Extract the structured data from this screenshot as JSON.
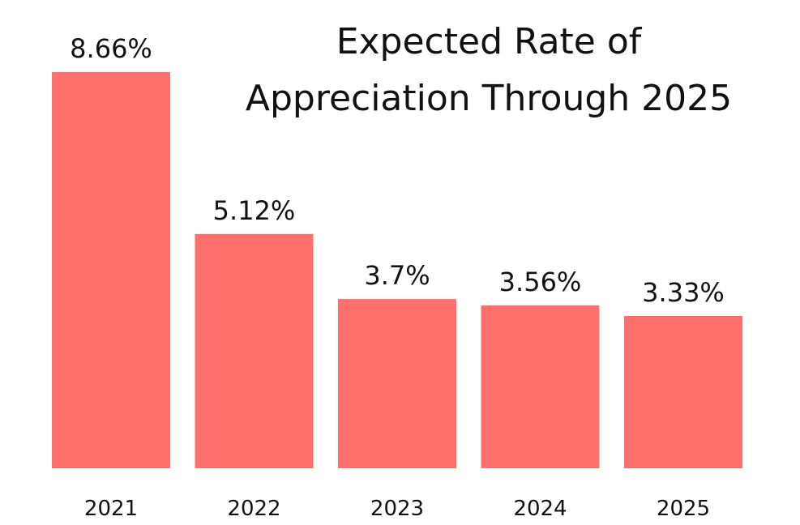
{
  "chart_data": {
    "type": "bar",
    "title": "Expected Rate of Appreciation Through 2025",
    "title_lines": [
      "Expected Rate of",
      "Appreciation Through 2025"
    ],
    "categories": [
      "2021",
      "2022",
      "2023",
      "2024",
      "2025"
    ],
    "values": [
      8.66,
      5.12,
      3.7,
      3.56,
      3.33
    ],
    "data_labels": [
      "8.66%",
      "5.12%",
      "3.7%",
      "3.56%",
      "3.33%"
    ],
    "bar_color": "#ff6f6b",
    "ylim": [
      0,
      8.66
    ],
    "grid": false,
    "legend": "none"
  }
}
